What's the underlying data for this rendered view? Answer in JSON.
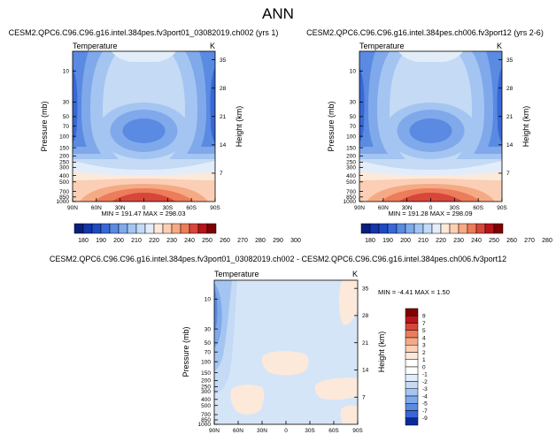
{
  "page_title": "ANN",
  "colors": {
    "warm": [
      "#fde9da",
      "#fbcfb5",
      "#f6a985",
      "#ec7c5a",
      "#d7463a",
      "#b8141c",
      "#7f0000"
    ],
    "cool": [
      "#e3edfa",
      "#c4daf5",
      "#a4c5f1",
      "#7fa9ea",
      "#5a8ae1",
      "#3868d7",
      "#1f4ac2",
      "#0a2a9a"
    ],
    "neutral": "#d5e5f8",
    "zero": "#ffffff"
  },
  "panels": [
    {
      "title": "CESM2.QPC6.C96.C96.g16.intel.384pes.fv3port01_03082019.ch002 (yrs 1)",
      "var_label": "Temperature",
      "unit_label": "K",
      "ylabel": "Pressure (mb)",
      "ylabel_right": "Height (km)",
      "x_ticks": [
        "90N",
        "60N",
        "30N",
        "0",
        "30S",
        "60S",
        "90S"
      ],
      "p_ticks": [
        "10",
        "30",
        "50",
        "70",
        "100",
        "150",
        "200",
        "250",
        "300",
        "400",
        "500",
        "700",
        "850",
        "1000"
      ],
      "h_ticks": [
        "35",
        "28",
        "21",
        "14",
        "7"
      ],
      "stats": "MIN = 191.47  MAX = 298.03"
    },
    {
      "title": "CESM2.QPC6.C96.C96.g16.intel.384pes.ch006.fv3port12 (yrs 2-6)",
      "var_label": "Temperature",
      "unit_label": "K",
      "ylabel": "Pressure (mb)",
      "ylabel_right": "Height (km)",
      "x_ticks": [
        "90N",
        "60N",
        "30N",
        "0",
        "30S",
        "60S",
        "90S"
      ],
      "p_ticks": [
        "10",
        "30",
        "50",
        "70",
        "100",
        "150",
        "200",
        "250",
        "300",
        "400",
        "500",
        "700",
        "850",
        "1000"
      ],
      "h_ticks": [
        "35",
        "28",
        "21",
        "14",
        "7"
      ],
      "stats": "MIN = 191.28  MAX = 298.09"
    },
    {
      "title": "CESM2.QPC6.C96.C96.g16.intel.384pes.fv3port01_03082019.ch002 - CESM2.QPC6.C96.C96.g16.intel.384pes.ch006.fv3port12",
      "var_label": "Temperature",
      "unit_label": "K",
      "ylabel": "Pressure (mb)",
      "ylabel_right": "Height (km)",
      "x_ticks": [
        "90N",
        "60N",
        "30N",
        "0",
        "30S",
        "60S",
        "90S"
      ],
      "p_ticks": [
        "10",
        "30",
        "50",
        "70",
        "100",
        "150",
        "200",
        "250",
        "300",
        "400",
        "500",
        "700",
        "850",
        "1000"
      ],
      "h_ticks": [
        "35",
        "28",
        "21",
        "14",
        "7"
      ],
      "stats": "MIN =  -4.41  MAX =   1.50"
    }
  ],
  "colorbars": {
    "temperature": {
      "labels": [
        "180",
        "190",
        "200",
        "210",
        "220",
        "230",
        "240",
        "250",
        "260",
        "270",
        "280",
        "290",
        "300"
      ],
      "colors": [
        "#0a1f7a",
        "#1535a8",
        "#1f4ac2",
        "#3868d7",
        "#5a8ae1",
        "#7fa9ea",
        "#a4c5f1",
        "#c4daf5",
        "#e3edfa",
        "#fde9da",
        "#fbcfb5",
        "#f6a985",
        "#ec7c5a",
        "#d7463a",
        "#b8141c",
        "#7f0000"
      ]
    },
    "difference": {
      "labels": [
        "9",
        "7",
        "5",
        "4",
        "3",
        "2",
        "1",
        "0",
        "-1",
        "-2",
        "-3",
        "-4",
        "-5",
        "-7",
        "-9"
      ],
      "colors": [
        "#7f0000",
        "#b8141c",
        "#d7463a",
        "#ec7c5a",
        "#f6a985",
        "#fbcfb5",
        "#fde9da",
        "#ffffff",
        "#ffffff",
        "#e3edfa",
        "#c4daf5",
        "#a4c5f1",
        "#7fa9ea",
        "#5a8ae1",
        "#3868d7",
        "#0a2a9a"
      ]
    }
  },
  "chart_data": [
    {
      "type": "heatmap",
      "title": "CESM2.QPC6.C96.C96.g16.intel.384pes.fv3port01_03082019.ch002 (yrs 1)",
      "variable": "Temperature",
      "units": "K",
      "xlabel": "",
      "ylabel": "Pressure (mb)",
      "ylabel_right": "Height (km)",
      "x": [
        "90N",
        "60N",
        "30N",
        "0",
        "30S",
        "60S",
        "90S"
      ],
      "y_pressure": [
        10,
        30,
        50,
        70,
        100,
        150,
        200,
        250,
        300,
        400,
        500,
        700,
        850,
        1000
      ],
      "zlim": [
        191.47,
        298.03
      ],
      "grid": false
    },
    {
      "type": "heatmap",
      "title": "CESM2.QPC6.C96.C96.g16.intel.384pes.ch006.fv3port12 (yrs 2-6)",
      "variable": "Temperature",
      "units": "K",
      "xlabel": "",
      "ylabel": "Pressure (mb)",
      "ylabel_right": "Height (km)",
      "x": [
        "90N",
        "60N",
        "30N",
        "0",
        "30S",
        "60S",
        "90S"
      ],
      "y_pressure": [
        10,
        30,
        50,
        70,
        100,
        150,
        200,
        250,
        300,
        400,
        500,
        700,
        850,
        1000
      ],
      "zlim": [
        191.28,
        298.09
      ],
      "grid": false
    },
    {
      "type": "heatmap",
      "title": "CESM2.QPC6.C96.C96.g16.intel.384pes.fv3port01_03082019.ch002 - CESM2.QPC6.C96.C96.g16.intel.384pes.ch006.fv3port12",
      "variable": "Temperature",
      "units": "K",
      "xlabel": "",
      "ylabel": "Pressure (mb)",
      "ylabel_right": "Height (km)",
      "x": [
        "90N",
        "60N",
        "30N",
        "0",
        "30S",
        "60S",
        "90S"
      ],
      "y_pressure": [
        10,
        30,
        50,
        70,
        100,
        150,
        200,
        250,
        300,
        400,
        500,
        700,
        850,
        1000
      ],
      "zlim": [
        -4.41,
        1.5
      ],
      "grid": false
    }
  ]
}
